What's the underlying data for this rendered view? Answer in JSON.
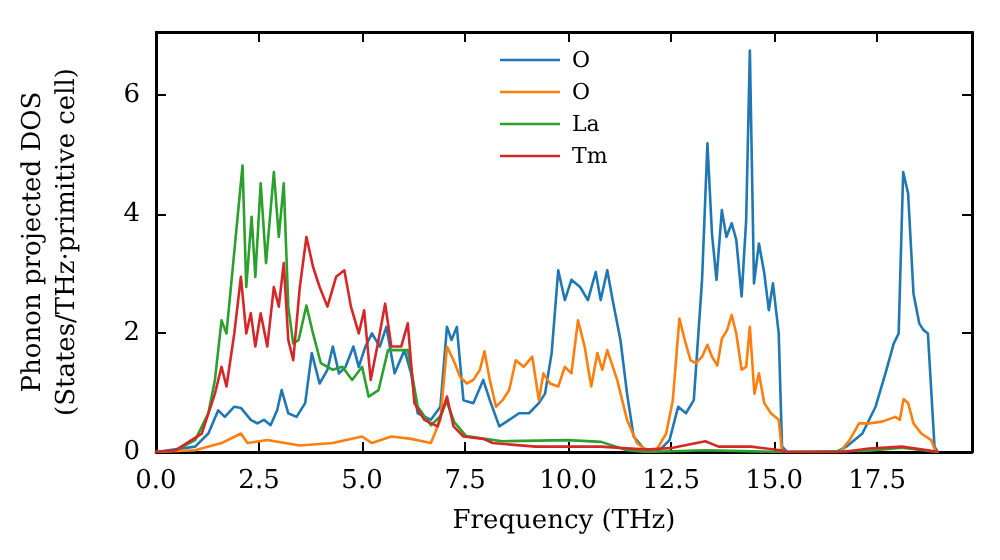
{
  "chart_data": {
    "type": "line",
    "xlabel": "Frequency (THz)",
    "ylabel": "Phonon projected DOS\n(States/THz·primitive cell)",
    "xlim": [
      0,
      19.8
    ],
    "ylim": [
      0,
      7.05
    ],
    "xticks": [
      {
        "value": 0,
        "label": "0.0"
      },
      {
        "value": 2.5,
        "label": "2.5"
      },
      {
        "value": 5,
        "label": "5.0"
      },
      {
        "value": 7.5,
        "label": "7.5"
      },
      {
        "value": 10,
        "label": "10.0"
      },
      {
        "value": 12.5,
        "label": "12.5"
      },
      {
        "value": 15,
        "label": "15.0"
      },
      {
        "value": 17.5,
        "label": "17.5"
      }
    ],
    "yticks": [
      0,
      2,
      4,
      6
    ],
    "grid": false,
    "legend": "top",
    "series": [
      {
        "name": "O",
        "color": "#1f77b4",
        "x": [
          0,
          0.95,
          1.27,
          1.51,
          1.67,
          1.9,
          2.06,
          2.3,
          2.46,
          2.62,
          2.78,
          2.94,
          3.05,
          3.21,
          3.41,
          3.62,
          3.78,
          3.97,
          4.16,
          4.29,
          4.44,
          4.6,
          4.79,
          4.92,
          5.08,
          5.24,
          5.43,
          5.59,
          5.79,
          6.03,
          6.19,
          6.35,
          6.67,
          6.9,
          7.06,
          7.17,
          7.3,
          7.46,
          7.7,
          7.94,
          8.1,
          8.33,
          8.57,
          8.81,
          9.05,
          9.29,
          9.44,
          9.6,
          9.76,
          9.92,
          10.08,
          10.29,
          10.48,
          10.67,
          10.79,
          10.95,
          11.08,
          11.27,
          11.43,
          11.59,
          11.83,
          12.06,
          12.22,
          12.46,
          12.67,
          12.86,
          13.05,
          13.25,
          13.38,
          13.49,
          13.6,
          13.73,
          13.84,
          13.97,
          14.08,
          14.21,
          14.32,
          14.41,
          14.51,
          14.63,
          14.76,
          14.87,
          14.97,
          15.11,
          15.19,
          15.32,
          16.51,
          16.75,
          17.14,
          17.46,
          17.7,
          17.9,
          18.02,
          18.13,
          18.25,
          18.38,
          18.52,
          18.62,
          18.73,
          18.89,
          18.97
        ],
        "values": [
          0,
          0.09,
          0.31,
          0.7,
          0.59,
          0.76,
          0.74,
          0.54,
          0.48,
          0.54,
          0.45,
          0.7,
          1.04,
          0.65,
          0.59,
          0.82,
          1.66,
          1.15,
          1.38,
          1.77,
          1.32,
          1.43,
          1.77,
          1.43,
          1.77,
          1.99,
          1.77,
          2.1,
          1.32,
          1.71,
          1.32,
          0.65,
          0.54,
          0.76,
          2.1,
          1.88,
          2.1,
          0.87,
          0.82,
          1.21,
          0.87,
          0.43,
          0.54,
          0.65,
          0.65,
          0.82,
          0.98,
          1.66,
          3.05,
          2.55,
          2.89,
          2.77,
          2.55,
          3.02,
          2.55,
          3.05,
          2.55,
          1.88,
          0.98,
          0.26,
          0.06,
          0.03,
          0.03,
          0.2,
          0.76,
          0.65,
          0.87,
          2.89,
          5.18,
          3.67,
          2.89,
          4.06,
          3.61,
          3.84,
          3.56,
          2.61,
          3.89,
          6.74,
          2.83,
          3.5,
          3.0,
          2.38,
          2.83,
          1.99,
          0.09,
          0,
          0,
          0.09,
          0.31,
          0.76,
          1.32,
          1.82,
          1.99,
          4.7,
          4.34,
          2.66,
          2.16,
          2.05,
          1.99,
          0.09,
          0
        ]
      },
      {
        "name": "O",
        "color": "#ff7f0e",
        "x": [
          0,
          0.95,
          1.59,
          2.06,
          2.22,
          2.7,
          3.49,
          4.29,
          5.0,
          5.24,
          5.71,
          6.19,
          6.67,
          6.9,
          7.06,
          7.22,
          7.38,
          7.54,
          7.7,
          7.86,
          7.97,
          8.1,
          8.25,
          8.41,
          8.57,
          8.73,
          8.92,
          9.13,
          9.29,
          9.4,
          9.56,
          9.76,
          9.92,
          10.08,
          10.24,
          10.4,
          10.56,
          10.71,
          10.83,
          10.95,
          11.19,
          11.43,
          11.67,
          11.9,
          12.14,
          12.38,
          12.54,
          12.7,
          12.83,
          12.97,
          13.1,
          13.25,
          13.38,
          13.49,
          13.62,
          13.73,
          13.86,
          13.97,
          14.08,
          14.21,
          14.32,
          14.41,
          14.52,
          14.63,
          14.76,
          14.92,
          15.11,
          15.19,
          16.59,
          16.83,
          17.06,
          17.3,
          17.62,
          17.94,
          18.05,
          18.14,
          18.25,
          18.38,
          18.57,
          18.81,
          18.92
        ],
        "values": [
          0,
          0.03,
          0.15,
          0.31,
          0.15,
          0.2,
          0.11,
          0.15,
          0.26,
          0.15,
          0.26,
          0.22,
          0.15,
          0.54,
          1.77,
          1.54,
          1.26,
          1.15,
          1.21,
          1.38,
          1.69,
          1.21,
          0.76,
          0.87,
          1.04,
          1.54,
          1.43,
          1.6,
          0.87,
          1.32,
          1.15,
          1.1,
          1.43,
          1.32,
          2.21,
          1.77,
          1.1,
          1.66,
          1.38,
          1.71,
          1.21,
          0.54,
          0.15,
          0.03,
          0.03,
          0.31,
          0.87,
          2.24,
          1.88,
          1.54,
          1.49,
          1.6,
          1.8,
          1.6,
          1.45,
          1.9,
          2.05,
          2.3,
          1.99,
          1.38,
          1.43,
          2.1,
          0.98,
          1.32,
          0.82,
          0.65,
          0.54,
          0,
          0,
          0.2,
          0.48,
          0.48,
          0.51,
          0.59,
          0.54,
          0.89,
          0.82,
          0.48,
          0.31,
          0.2,
          0
        ]
      },
      {
        "name": "La",
        "color": "#2ca02c",
        "x": [
          0,
          0.48,
          0.95,
          1.27,
          1.43,
          1.59,
          1.71,
          2.1,
          2.19,
          2.32,
          2.41,
          2.54,
          2.67,
          2.86,
          2.98,
          3.1,
          3.21,
          3.33,
          3.46,
          3.65,
          3.81,
          4.0,
          4.29,
          4.52,
          4.76,
          5.0,
          5.16,
          5.4,
          5.63,
          5.87,
          6.11,
          6.35,
          6.67,
          6.9,
          7.05,
          7.24,
          7.52,
          8.4,
          10.0,
          10.8,
          11.43,
          11.9,
          13.33,
          15.16,
          17.3,
          18.1,
          18.97
        ],
        "values": [
          0,
          0.03,
          0.2,
          0.65,
          1.21,
          2.21,
          1.99,
          4.81,
          2.77,
          3.95,
          2.94,
          4.51,
          3.17,
          4.7,
          3.61,
          4.51,
          2.44,
          1.82,
          1.88,
          2.46,
          1.99,
          1.49,
          1.38,
          1.43,
          1.21,
          1.43,
          0.93,
          1.04,
          1.71,
          1.71,
          1.71,
          0.76,
          0.45,
          0.6,
          0.85,
          0.5,
          0.27,
          0.18,
          0.2,
          0.17,
          0.03,
          0,
          0.03,
          0,
          0.02,
          0.07,
          0
        ]
      },
      {
        "name": "Tm",
        "color": "#d62728",
        "x": [
          0,
          0.48,
          1.11,
          1.43,
          1.59,
          1.71,
          1.9,
          2.06,
          2.19,
          2.3,
          2.41,
          2.54,
          2.7,
          2.86,
          2.98,
          3.1,
          3.21,
          3.33,
          3.49,
          3.65,
          3.81,
          3.97,
          4.16,
          4.37,
          4.57,
          4.73,
          4.92,
          5.05,
          5.21,
          5.4,
          5.56,
          5.71,
          5.95,
          6.11,
          6.27,
          6.51,
          6.83,
          7.06,
          7.22,
          7.46,
          7.94,
          8.17,
          9.21,
          10.8,
          11.9,
          12.54,
          13.33,
          13.65,
          14.44,
          15.16,
          15.24,
          16.67,
          17.3,
          18.1,
          18.73,
          18.97
        ],
        "values": [
          0,
          0.03,
          0.31,
          0.98,
          1.43,
          1.1,
          1.99,
          2.94,
          1.99,
          2.33,
          1.77,
          2.33,
          1.77,
          2.77,
          2.44,
          3.17,
          1.88,
          1.54,
          2.77,
          3.61,
          3.11,
          2.77,
          2.44,
          2.94,
          3.05,
          2.44,
          1.99,
          2.38,
          1.21,
          1.88,
          2.49,
          1.77,
          1.77,
          2.16,
          0.82,
          0.54,
          0.43,
          0.93,
          0.43,
          0.26,
          0.22,
          0.15,
          0.09,
          0.09,
          0.04,
          0.07,
          0.18,
          0.09,
          0.09,
          0.03,
          0,
          0,
          0.06,
          0.09,
          0.03,
          0
        ]
      }
    ]
  }
}
